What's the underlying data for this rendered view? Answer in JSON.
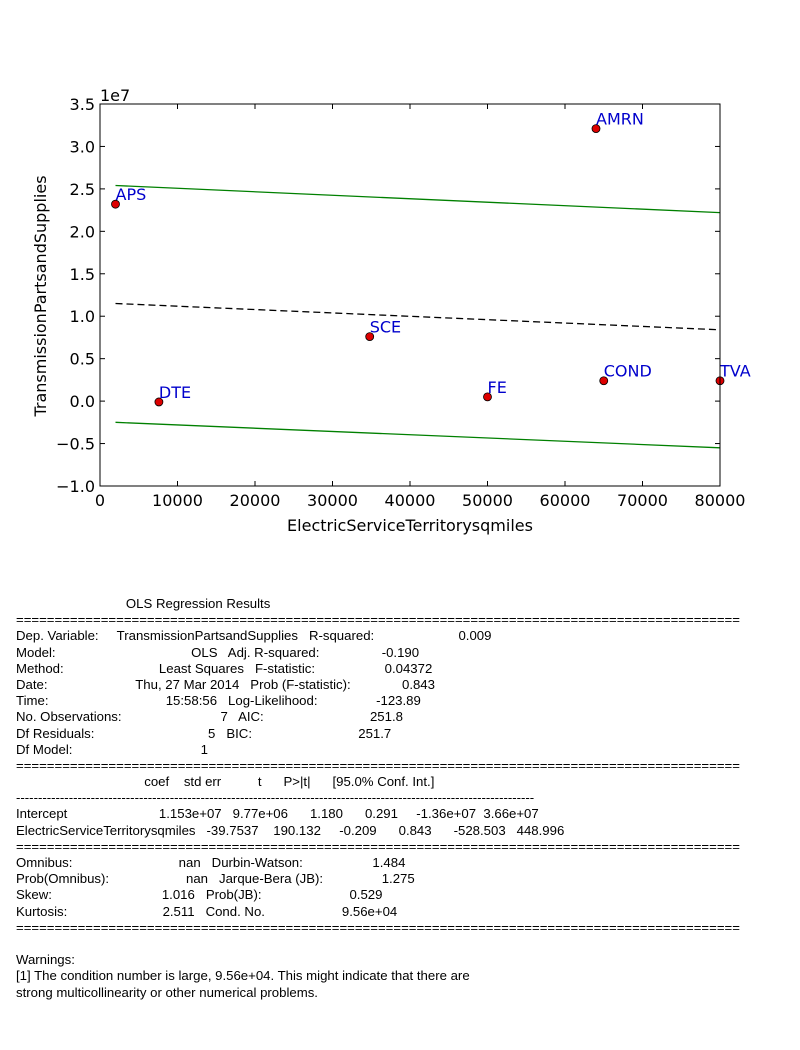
{
  "chart_data": {
    "type": "scatter",
    "title": "",
    "xlabel": "ElectricServiceTerritorysqmiles",
    "ylabel": "TransmissionPartsandSupplies",
    "y_offset_label": "1e7",
    "xlim": [
      0,
      80000
    ],
    "ylim": [
      -1.0,
      3.5
    ],
    "x_ticks": [
      "0",
      "10000",
      "20000",
      "30000",
      "40000",
      "50000",
      "60000",
      "70000",
      "80000"
    ],
    "y_ticks": [
      "−1.0",
      "−0.5",
      "0.0",
      "0.5",
      "1.0",
      "1.5",
      "2.0",
      "2.5",
      "3.0",
      "3.5"
    ],
    "grid": false,
    "points": [
      {
        "label": "APS",
        "x": 2000,
        "y": 2.32
      },
      {
        "label": "DTE",
        "x": 7600,
        "y": -0.01
      },
      {
        "label": "SCE",
        "x": 34800,
        "y": 0.76
      },
      {
        "label": "FE",
        "x": 50000,
        "y": 0.05
      },
      {
        "label": "AMRN",
        "x": 64000,
        "y": 3.21
      },
      {
        "label": "COND",
        "x": 65000,
        "y": 0.24
      },
      {
        "label": "TVA",
        "x": 80000,
        "y": 0.24
      }
    ],
    "lines": [
      {
        "role": "fit",
        "style": "dashed",
        "color": "#000000",
        "x": [
          2000,
          80000
        ],
        "y": [
          1.15,
          0.84
        ]
      },
      {
        "role": "upper-bound",
        "style": "solid",
        "color": "#008000",
        "x": [
          2000,
          80000
        ],
        "y": [
          2.54,
          2.22
        ]
      },
      {
        "role": "lower-bound",
        "style": "solid",
        "color": "#008000",
        "x": [
          2000,
          80000
        ],
        "y": [
          -0.25,
          -0.55
        ]
      }
    ],
    "marker_color": "#dd0000",
    "label_color": "#0000cc"
  },
  "report": {
    "lines": [
      "                              OLS Regression Results",
      "==============================================================================================",
      "Dep. Variable:     TransmissionPartsandSupplies   R-squared:                       0.009",
      "Model:                                     OLS   Adj. R-squared:                 -0.190",
      "Method:                          Least Squares   F-statistic:                   0.04372",
      "Date:                        Thu, 27 Mar 2014   Prob (F-statistic):              0.843",
      "Time:                                15:58:56   Log-Likelihood:                -123.89",
      "No. Observations:                           7   AIC:                             251.8",
      "Df Residuals:                               5   BIC:                             251.7",
      "Df Model:                                   1",
      "==============================================================================================",
      "                                   coef    std err          t      P>|t|      [95.0% Conf. Int.]",
      "----------------------------------------------------------------------------------------------------------------------",
      "Intercept                         1.153e+07   9.77e+06      1.180      0.291     -1.36e+07  3.66e+07",
      "ElectricServiceTerritorysqmiles   -39.7537    190.132     -0.209      0.843      -528.503   448.996",
      "==============================================================================================",
      "Omnibus:                             nan   Durbin-Watson:                   1.484",
      "Prob(Omnibus):                     nan   Jarque-Bera (JB):                1.275",
      "Skew:                              1.016   Prob(JB):                        0.529",
      "Kurtosis:                          2.511   Cond. No.                     9.56e+04",
      "==============================================================================================",
      "",
      "Warnings:",
      "[1] The condition number is large, 9.56e+04. This might indicate that there are",
      "strong multicollinearity or other numerical problems."
    ]
  }
}
